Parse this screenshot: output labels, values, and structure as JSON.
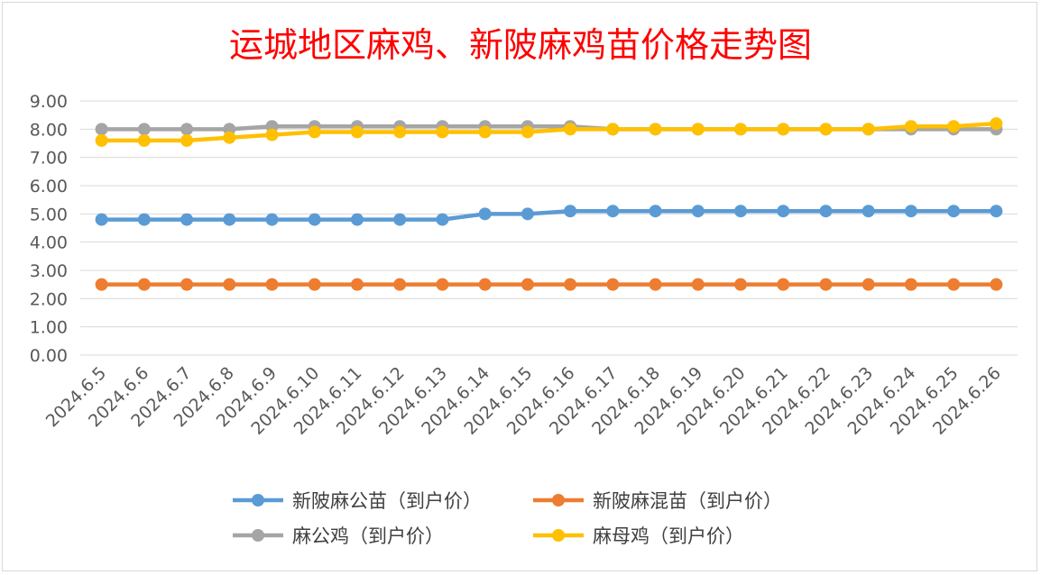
{
  "chart_data": {
    "type": "line",
    "title": "运城地区麻鸡、新陂麻鸡苗价格走势图",
    "xlabel": "",
    "ylabel": "",
    "ylim": [
      0,
      9
    ],
    "yticks": [
      "0.00",
      "1.00",
      "2.00",
      "3.00",
      "4.00",
      "5.00",
      "6.00",
      "7.00",
      "8.00",
      "9.00"
    ],
    "grid": true,
    "legend_position": "bottom",
    "categories": [
      "2024.6.5",
      "2024.6.6",
      "2024.6.7",
      "2024.6.8",
      "2024.6.9",
      "2024.6.10",
      "2024.6.11",
      "2024.6.12",
      "2024.6.13",
      "2024.6.14",
      "2024.6.15",
      "2024.6.16",
      "2024.6.17",
      "2024.6.18",
      "2024.6.19",
      "2024.6.20",
      "2024.6.21",
      "2024.6.22",
      "2024.6.23",
      "2024.6.24",
      "2024.6.25",
      "2024.6.26"
    ],
    "series": [
      {
        "name": "新陂麻公苗（到户价）",
        "color": "#5b9bd5",
        "values": [
          4.8,
          4.8,
          4.8,
          4.8,
          4.8,
          4.8,
          4.8,
          4.8,
          4.8,
          5.0,
          5.0,
          5.1,
          5.1,
          5.1,
          5.1,
          5.1,
          5.1,
          5.1,
          5.1,
          5.1,
          5.1,
          5.1
        ]
      },
      {
        "name": "新陂麻混苗（到户价）",
        "color": "#ed7d31",
        "values": [
          2.5,
          2.5,
          2.5,
          2.5,
          2.5,
          2.5,
          2.5,
          2.5,
          2.5,
          2.5,
          2.5,
          2.5,
          2.5,
          2.5,
          2.5,
          2.5,
          2.5,
          2.5,
          2.5,
          2.5,
          2.5,
          2.5
        ]
      },
      {
        "name": "麻公鸡（到户价）",
        "color": "#a5a5a5",
        "values": [
          8.0,
          8.0,
          8.0,
          8.0,
          8.1,
          8.1,
          8.1,
          8.1,
          8.1,
          8.1,
          8.1,
          8.1,
          8.0,
          8.0,
          8.0,
          8.0,
          8.0,
          8.0,
          8.0,
          8.0,
          8.0,
          8.0
        ]
      },
      {
        "name": "麻母鸡（到户价）",
        "color": "#ffc000",
        "values": [
          7.6,
          7.6,
          7.6,
          7.7,
          7.8,
          7.9,
          7.9,
          7.9,
          7.9,
          7.9,
          7.9,
          8.0,
          8.0,
          8.0,
          8.0,
          8.0,
          8.0,
          8.0,
          8.0,
          8.1,
          8.1,
          8.2
        ]
      }
    ]
  }
}
